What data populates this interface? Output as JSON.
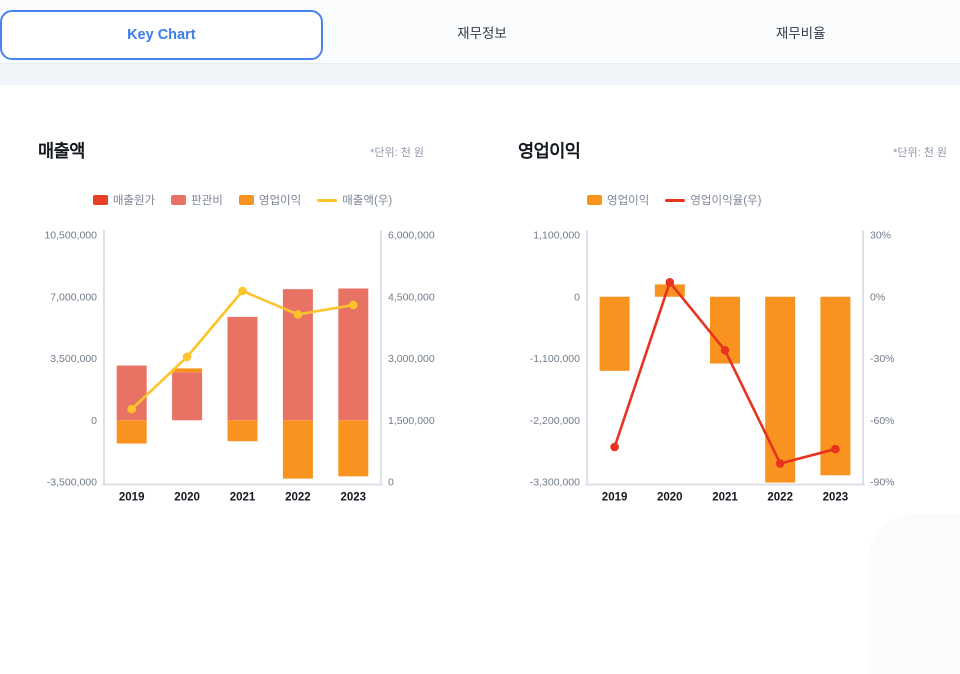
{
  "tabs": [
    {
      "label": "Key Chart",
      "active": true
    },
    {
      "label": "재무정보",
      "active": false
    },
    {
      "label": "재무비율",
      "active": false
    }
  ],
  "colors": {
    "active_tab_border": "#4a83f0",
    "active_tab_text": "#3b7cf0",
    "axis_line": "#dde1e7",
    "divider_band": "#f0f3f7"
  },
  "chart_data": [
    {
      "type": "stacked-bar+line",
      "title": "매출액",
      "unit_note": "*단위: 천 원",
      "categories": [
        "2019",
        "2020",
        "2021",
        "2022",
        "2023"
      ],
      "bar_series": [
        {
          "name": "매출원가",
          "color": "#e73f22",
          "values": [
            0,
            0,
            0,
            0,
            0
          ]
        },
        {
          "name": "판관비",
          "color": "#e87365",
          "values": [
            3100000,
            2720000,
            5860000,
            7430000,
            7470000
          ]
        },
        {
          "name": "영업이익",
          "color": "#f9931f",
          "values": [
            -1320000,
            220000,
            -1190000,
            -3310000,
            -3180000
          ]
        }
      ],
      "line_series": [
        {
          "name": "매출액(우)",
          "color": "#fcc32d",
          "axis": "right",
          "values": [
            1770000,
            3040000,
            4640000,
            4070000,
            4300000
          ]
        }
      ],
      "left_axis": {
        "min": -3500000,
        "max": 10500000,
        "tick_labels": [
          "10,500,000",
          "7,000,000",
          "3,500,000",
          "0",
          "-3,500,000"
        ]
      },
      "right_axis": {
        "min": 0,
        "max": 6000000,
        "tick_labels": [
          "6,000,000",
          "4,500,000",
          "3,000,000",
          "1,500,000",
          "0"
        ]
      },
      "grid": "off",
      "legend_position": "top-center"
    },
    {
      "type": "bar+line",
      "title": "영업이익",
      "unit_note": "*단위: 천 원",
      "categories": [
        "2019",
        "2020",
        "2021",
        "2022",
        "2023"
      ],
      "bar_series": [
        {
          "name": "영업이익",
          "color": "#f9931f",
          "values": [
            -1320000,
            220000,
            -1190000,
            -3310000,
            -3180000
          ]
        }
      ],
      "line_series": [
        {
          "name": "영업이익율(우)",
          "color": "#e7331f",
          "axis": "right",
          "values": [
            -73,
            7,
            -26,
            -81,
            -74
          ]
        }
      ],
      "left_axis": {
        "min": -3300000,
        "max": 1100000,
        "tick_labels": [
          "1,100,000",
          "0",
          "-1,100,000",
          "-2,200,000",
          "-3,300,000"
        ]
      },
      "right_axis": {
        "min": -90,
        "max": 30,
        "tick_labels": [
          "30%",
          "0%",
          "-30%",
          "-60%",
          "-90%"
        ]
      },
      "grid": "off",
      "legend_position": "top-left"
    }
  ]
}
